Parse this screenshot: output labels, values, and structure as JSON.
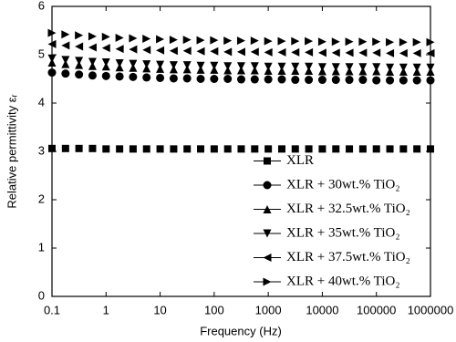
{
  "chart_data": {
    "type": "scatter",
    "x_label": "Frequency (Hz)",
    "y_label": "Relative permittivity εᵣ",
    "x": [
      0.1,
      0.178,
      0.316,
      0.562,
      1,
      1.78,
      3.16,
      5.62,
      10,
      17.8,
      31.6,
      56.2,
      100,
      178,
      316,
      562,
      1000,
      1780,
      3160,
      5620,
      10000,
      17800,
      31600,
      56200,
      100000,
      178000,
      316000,
      562000,
      1000000
    ],
    "series": [
      {
        "name": "XLR",
        "color": "#000000",
        "marker": "square",
        "values": [
          3.06,
          3.06,
          3.06,
          3.06,
          3.05,
          3.05,
          3.05,
          3.05,
          3.05,
          3.05,
          3.05,
          3.05,
          3.05,
          3.05,
          3.05,
          3.05,
          3.05,
          3.05,
          3.05,
          3.05,
          3.05,
          3.05,
          3.05,
          3.05,
          3.05,
          3.05,
          3.05,
          3.05,
          3.05
        ]
      },
      {
        "name": "XLR + 30wt.% TiO₂",
        "color": "#000000",
        "marker": "circle",
        "values": [
          4.63,
          4.61,
          4.59,
          4.57,
          4.56,
          4.55,
          4.54,
          4.53,
          4.52,
          4.51,
          4.51,
          4.5,
          4.5,
          4.5,
          4.49,
          4.49,
          4.49,
          4.49,
          4.48,
          4.48,
          4.48,
          4.48,
          4.48,
          4.48,
          4.47,
          4.47,
          4.47,
          4.47,
          4.47
        ]
      },
      {
        "name": "XLR + 32.5wt.% TiO₂",
        "color": "#000000",
        "marker": "triangle-up",
        "values": [
          4.84,
          4.81,
          4.79,
          4.77,
          4.76,
          4.74,
          4.73,
          4.72,
          4.71,
          4.7,
          4.7,
          4.69,
          4.69,
          4.68,
          4.68,
          4.68,
          4.67,
          4.67,
          4.67,
          4.67,
          4.66,
          4.66,
          4.66,
          4.66,
          4.66,
          4.65,
          4.65,
          4.65,
          4.65
        ]
      },
      {
        "name": "XLR + 35wt.% TiO₂",
        "color": "#000000",
        "marker": "triangle-down",
        "values": [
          4.92,
          4.89,
          4.87,
          4.85,
          4.84,
          4.82,
          4.81,
          4.8,
          4.79,
          4.78,
          4.78,
          4.77,
          4.77,
          4.76,
          4.76,
          4.76,
          4.75,
          4.75,
          4.75,
          4.75,
          4.74,
          4.74,
          4.74,
          4.74,
          4.74,
          4.73,
          4.73,
          4.73,
          4.73
        ]
      },
      {
        "name": "XLR + 37.5wt.% TiO₂",
        "color": "#000000",
        "marker": "triangle-left",
        "values": [
          5.22,
          5.19,
          5.17,
          5.15,
          5.14,
          5.12,
          5.11,
          5.1,
          5.09,
          5.08,
          5.08,
          5.07,
          5.07,
          5.06,
          5.06,
          5.06,
          5.05,
          5.05,
          5.05,
          5.05,
          5.04,
          5.04,
          5.04,
          5.04,
          5.04,
          5.03,
          5.03,
          5.03,
          5.03
        ]
      },
      {
        "name": "XLR + 40wt.% TiO₂",
        "color": "#000000",
        "marker": "triangle-right",
        "values": [
          5.45,
          5.42,
          5.4,
          5.38,
          5.37,
          5.35,
          5.34,
          5.33,
          5.32,
          5.31,
          5.31,
          5.3,
          5.3,
          5.29,
          5.29,
          5.29,
          5.28,
          5.28,
          5.28,
          5.28,
          5.27,
          5.27,
          5.27,
          5.27,
          5.27,
          5.26,
          5.26,
          5.26,
          5.26
        ]
      }
    ],
    "xscale": "log",
    "xlim": [
      0.1,
      1000000
    ],
    "xticks": [
      0.1,
      1,
      10,
      100,
      1000,
      10000,
      100000,
      1000000
    ],
    "ylim": [
      0,
      6
    ],
    "yticks": [
      0,
      1,
      2,
      3,
      4,
      5,
      6
    ],
    "legend": "lower right"
  }
}
